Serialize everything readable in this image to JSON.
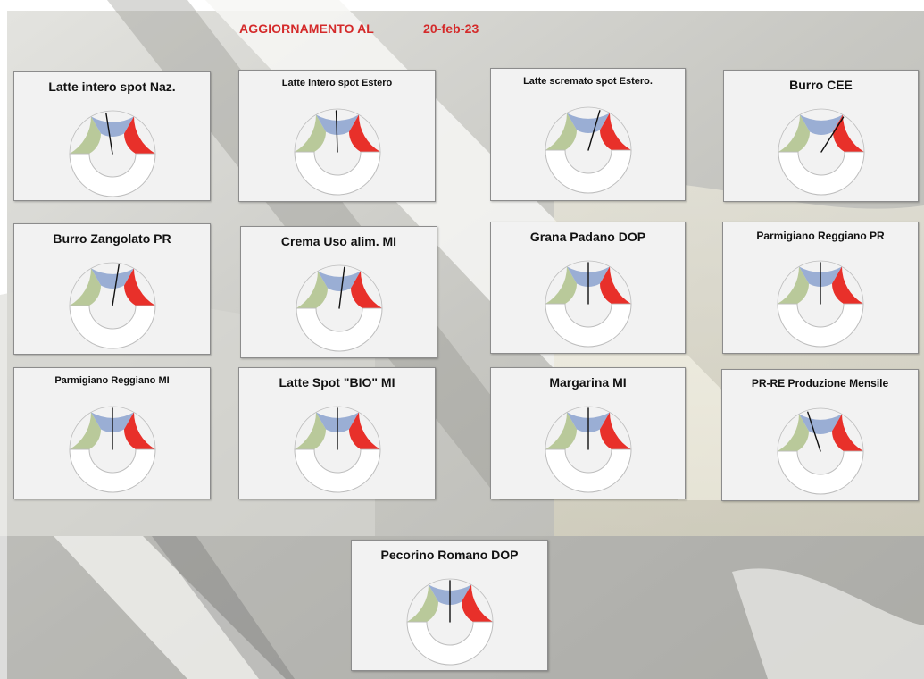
{
  "header": {
    "label": "AGGIORNAMENTO AL",
    "date": "20-feb-23",
    "color": "#d42a2a"
  },
  "gauge_colors": {
    "low": "#b9c99a",
    "mid": "#9aaed4",
    "high": "#e8302a",
    "ring": "#ffffff",
    "needle": "#111111"
  },
  "gauges": [
    {
      "id": "latte-intero-naz",
      "title": "Latte intero spot Naz.",
      "level": 0.45
    },
    {
      "id": "latte-intero-estero",
      "title": "Latte intero spot Estero",
      "level": 0.49
    },
    {
      "id": "latte-scremato-estero",
      "title": "Latte scremato spot Estero.",
      "level": 0.59
    },
    {
      "id": "burro-cee",
      "title": "Burro CEE",
      "level": 0.68
    },
    {
      "id": "burro-zangolato-pr",
      "title": "Burro Zangolato PR",
      "level": 0.55
    },
    {
      "id": "crema-uso-alim-mi",
      "title": "Crema Uso alim. MI",
      "level": 0.54
    },
    {
      "id": "grana-padano-dop",
      "title": "Grana Padano DOP",
      "level": 0.5
    },
    {
      "id": "parmigiano-reggiano-pr",
      "title": "Parmigiano Reggiano PR",
      "level": 0.5
    },
    {
      "id": "parmigiano-reggiano-mi",
      "title": "Parmigiano Reggiano MI",
      "level": 0.5
    },
    {
      "id": "latte-spot-bio-mi",
      "title": "Latte Spot \"BIO\" MI",
      "level": 0.5
    },
    {
      "id": "margarina-mi",
      "title": "Margarina MI",
      "level": 0.5
    },
    {
      "id": "pr-re-produzione-mensile",
      "title": "PR-RE Produzione Mensile",
      "level": 0.4
    },
    {
      "id": "pecorino-romano-dop",
      "title": "Pecorino Romano DOP",
      "level": 0.5
    }
  ]
}
